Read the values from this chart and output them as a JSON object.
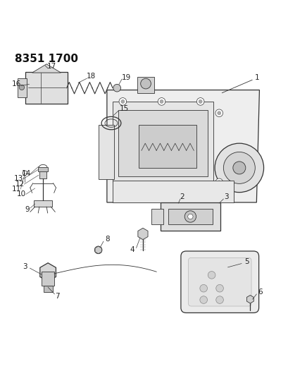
{
  "title": "8351 1700",
  "bg_color": "#ffffff",
  "line_color": "#333333",
  "text_color": "#222222",
  "title_fontsize": 11,
  "label_fontsize": 7.5,
  "fig_width": 4.1,
  "fig_height": 5.33
}
